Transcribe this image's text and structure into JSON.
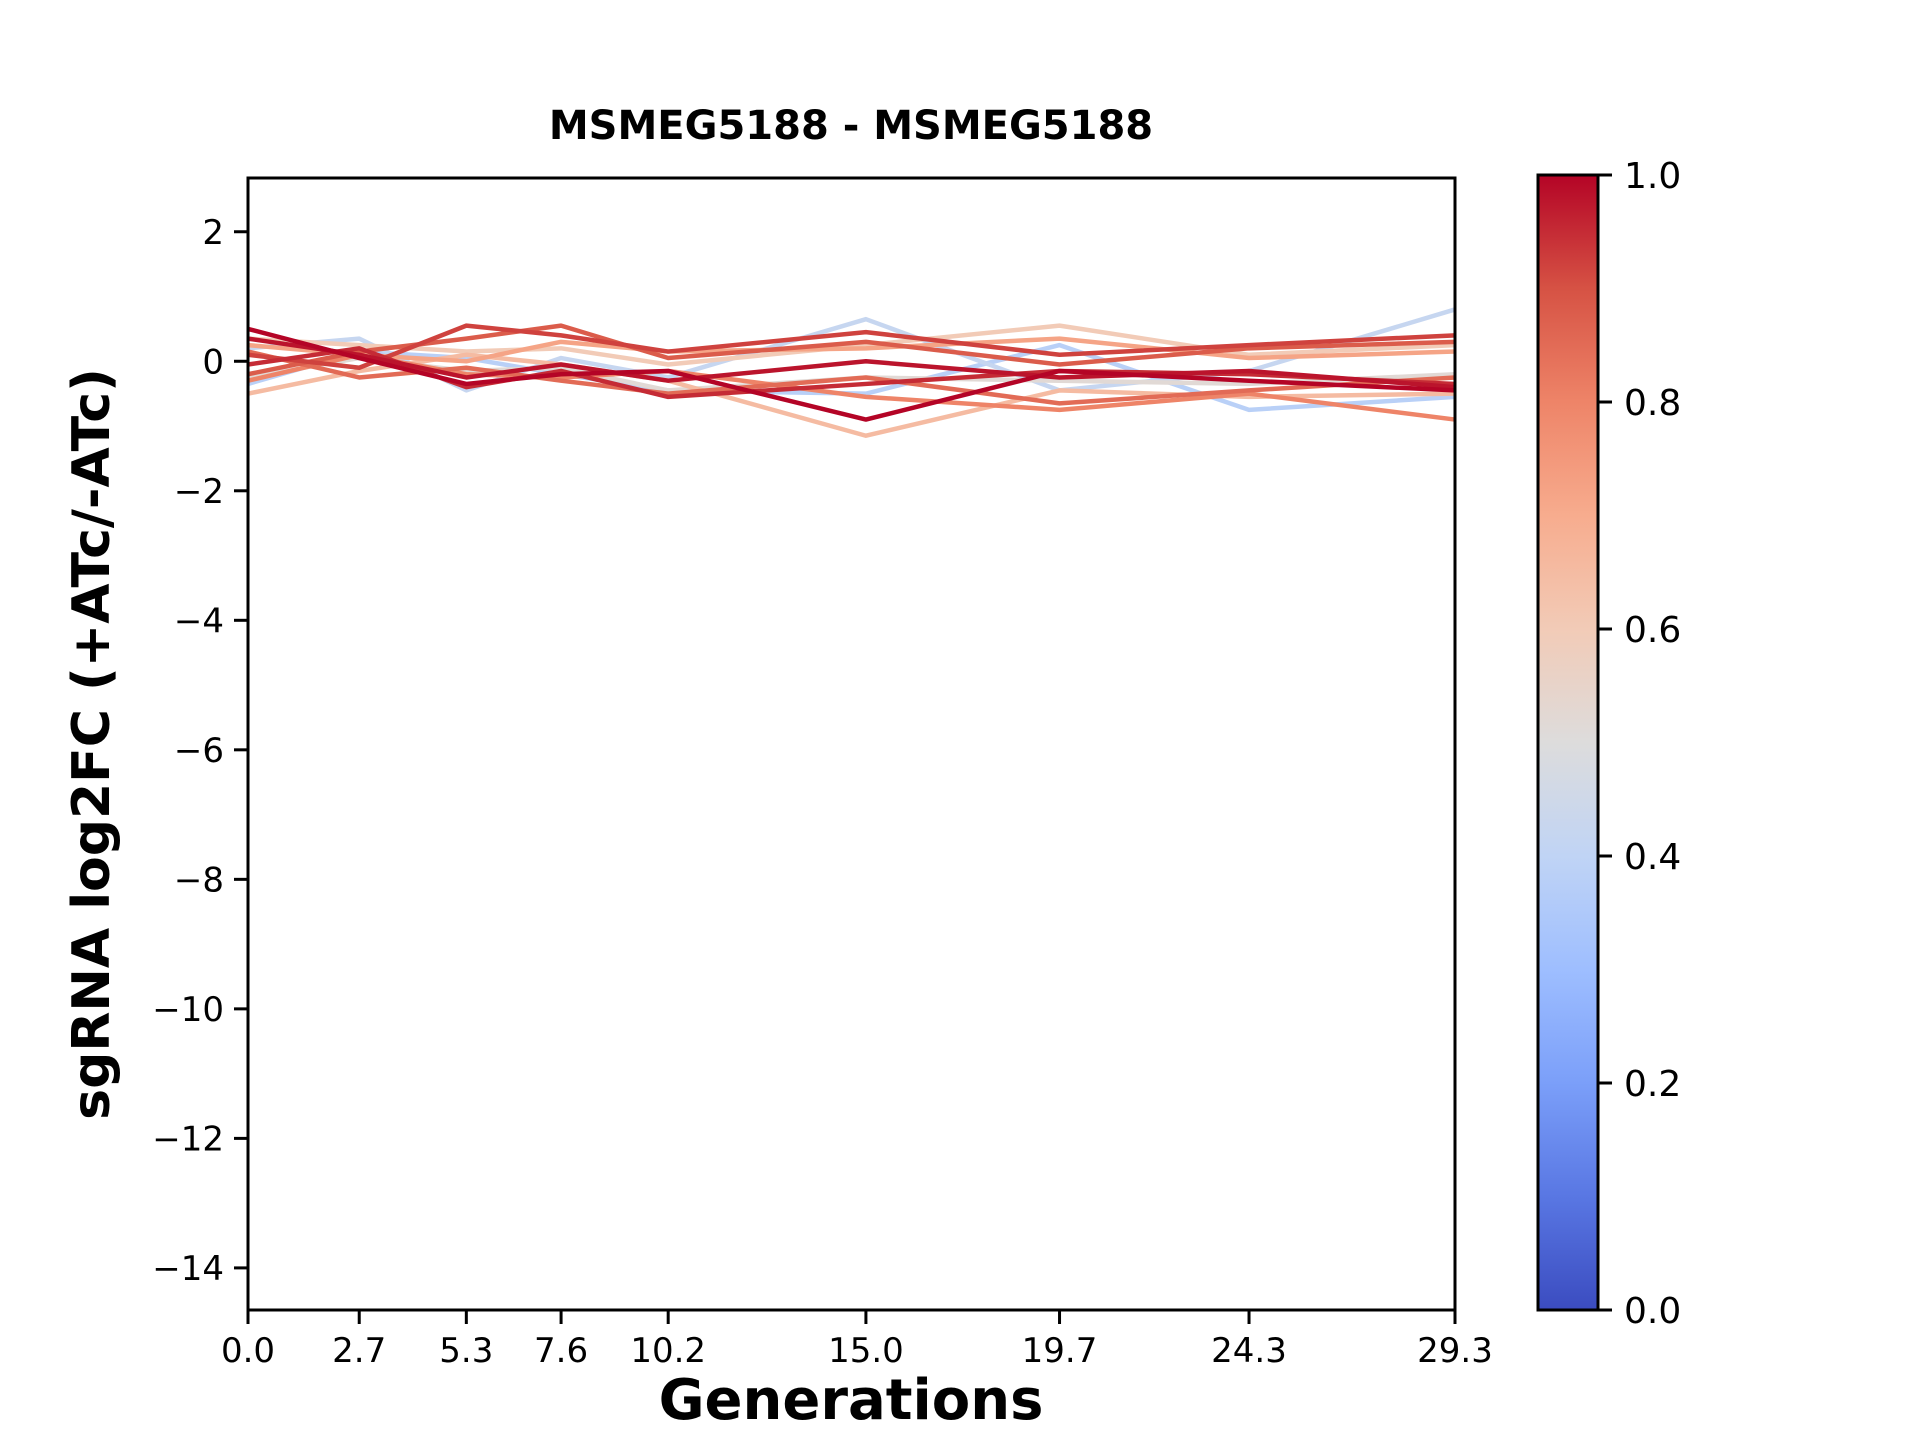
{
  "page": {
    "background": "#ffffff"
  },
  "chart_data": {
    "type": "line",
    "title": "MSMEG5188 - MSMEG5188",
    "xlabel": "Generations",
    "ylabel": "sgRNA log2FC (+ATc/-ATc)",
    "xlim": [
      0.0,
      29.3
    ],
    "ylim": [
      -14.65,
      2.83
    ],
    "x": [
      0.0,
      2.7,
      5.3,
      7.6,
      10.2,
      15.0,
      19.7,
      24.3,
      29.3
    ],
    "xtick_labels": [
      "0.0",
      "2.7",
      "5.3",
      "7.6",
      "10.2",
      "15.0",
      "19.7",
      "24.3",
      "29.3"
    ],
    "yticks": [
      2,
      0,
      -2,
      -4,
      -6,
      -8,
      -10,
      -12,
      -14
    ],
    "ytick_labels": [
      "2",
      "0",
      "−2",
      "−4",
      "−6",
      "−8",
      "−10",
      "−12",
      "−14"
    ],
    "grid": false,
    "legend": "none",
    "line_width": 4.5,
    "series": [
      {
        "color_value": 0.38,
        "values": [
          -0.35,
          0.15,
          0.05,
          -0.2,
          -0.45,
          -0.5,
          0.25,
          -0.75,
          -0.55
        ]
      },
      {
        "color_value": 0.42,
        "values": [
          0.2,
          0.35,
          -0.45,
          0.05,
          -0.25,
          0.65,
          -0.45,
          -0.15,
          0.8
        ]
      },
      {
        "color_value": 0.52,
        "values": [
          -0.25,
          0.05,
          -0.15,
          -0.1,
          -0.45,
          -0.25,
          -0.3,
          -0.35,
          -0.2
        ]
      },
      {
        "color_value": 0.6,
        "values": [
          0.35,
          0.25,
          0.15,
          0.2,
          -0.05,
          0.25,
          0.55,
          0.1,
          0.25
        ]
      },
      {
        "color_value": 0.65,
        "values": [
          -0.5,
          -0.15,
          0.1,
          -0.05,
          -0.3,
          -1.15,
          -0.45,
          -0.55,
          -0.5
        ]
      },
      {
        "color_value": 0.72,
        "values": [
          0.25,
          0.1,
          0.0,
          0.3,
          0.15,
          0.2,
          0.35,
          0.05,
          0.15
        ]
      },
      {
        "color_value": 0.8,
        "values": [
          -0.3,
          0.1,
          -0.2,
          -0.25,
          -0.15,
          -0.55,
          -0.75,
          -0.5,
          -0.9
        ]
      },
      {
        "color_value": 0.85,
        "values": [
          0.15,
          -0.25,
          -0.1,
          -0.3,
          -0.5,
          -0.25,
          -0.65,
          -0.45,
          -0.25
        ]
      },
      {
        "color_value": 0.88,
        "values": [
          -0.2,
          0.15,
          0.35,
          0.55,
          0.05,
          0.3,
          -0.05,
          0.2,
          0.3
        ]
      },
      {
        "color_value": 0.92,
        "values": [
          0.1,
          -0.1,
          0.55,
          0.4,
          0.15,
          0.45,
          0.1,
          0.25,
          0.4
        ]
      },
      {
        "color_value": 0.95,
        "values": [
          -0.05,
          0.2,
          -0.4,
          -0.15,
          -0.55,
          -0.35,
          -0.15,
          -0.2,
          -0.35
        ]
      },
      {
        "color_value": 0.98,
        "values": [
          0.35,
          0.1,
          -0.25,
          -0.05,
          -0.3,
          0.0,
          -0.25,
          -0.15,
          -0.4
        ]
      },
      {
        "color_value": 1.0,
        "values": [
          0.5,
          0.05,
          -0.35,
          -0.2,
          -0.15,
          -0.9,
          -0.15,
          -0.3,
          -0.45
        ]
      }
    ],
    "colorbar": {
      "min": 0.0,
      "max": 1.0,
      "tick_labels": [
        "1.0",
        "0.8",
        "0.6",
        "0.4",
        "0.2",
        "0.0"
      ],
      "colormap": "coolwarm",
      "stops": [
        [
          0.0,
          "#3b4cc0"
        ],
        [
          0.1,
          "#5977e3"
        ],
        [
          0.2,
          "#7b9ff9"
        ],
        [
          0.3,
          "#9ebeff"
        ],
        [
          0.4,
          "#c0d4f5"
        ],
        [
          0.5,
          "#dddcdc"
        ],
        [
          0.6,
          "#f2cbb7"
        ],
        [
          0.7,
          "#f7ac8e"
        ],
        [
          0.8,
          "#ee8468"
        ],
        [
          0.9,
          "#d65244"
        ],
        [
          1.0,
          "#b40426"
        ]
      ]
    },
    "axis_color": "#000000"
  }
}
